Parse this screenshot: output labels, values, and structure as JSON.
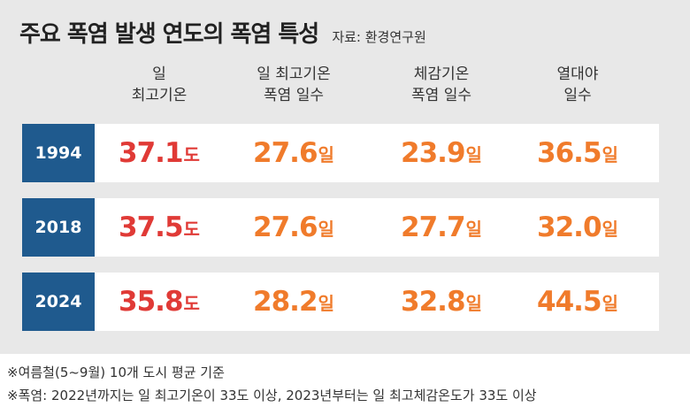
{
  "title": "주요 폭염 발생 연도의 폭염 특성",
  "source": "자료: 환경연구원",
  "columns": [
    {
      "line1": "일",
      "line2": "최고기온"
    },
    {
      "line1": "일 최고기온",
      "line2": "폭염 일수"
    },
    {
      "line1": "체감기온",
      "line2": "폭염 일수"
    },
    {
      "line1": "열대야",
      "line2": "일수"
    }
  ],
  "units": {
    "temp": "도",
    "days": "일"
  },
  "rows": [
    {
      "year": "1994",
      "values": [
        "37.1",
        "27.6",
        "23.9",
        "36.5"
      ]
    },
    {
      "year": "2018",
      "values": [
        "37.5",
        "27.6",
        "27.7",
        "32.0"
      ]
    },
    {
      "year": "2024",
      "values": [
        "35.8",
        "28.2",
        "32.8",
        "44.5"
      ]
    }
  ],
  "footnotes": [
    "※여름철(5~9월) 10개 도시 평균 기준",
    "※폭염: 2022년까지는 일 최고기온이 33도 이상, 2023년부터는 일 최고체감온도가 33도 이상"
  ],
  "colors": {
    "year_bg": "#1f5a8e",
    "temp": "#e03a36",
    "days": "#f07b2b",
    "panel": "#e8e8e8"
  },
  "chart_data": {
    "type": "table",
    "title": "주요 폭염 발생 연도의 폭염 특성",
    "categories": [
      "1994",
      "2018",
      "2024"
    ],
    "series": [
      {
        "name": "일 최고기온",
        "unit": "도",
        "values": [
          37.1,
          37.5,
          35.8
        ]
      },
      {
        "name": "일 최고기온 폭염 일수",
        "unit": "일",
        "values": [
          27.6,
          27.6,
          28.2
        ]
      },
      {
        "name": "체감기온 폭염 일수",
        "unit": "일",
        "values": [
          23.9,
          27.7,
          32.8
        ]
      },
      {
        "name": "열대야 일수",
        "unit": "일",
        "values": [
          36.5,
          32.0,
          44.5
        ]
      }
    ]
  }
}
